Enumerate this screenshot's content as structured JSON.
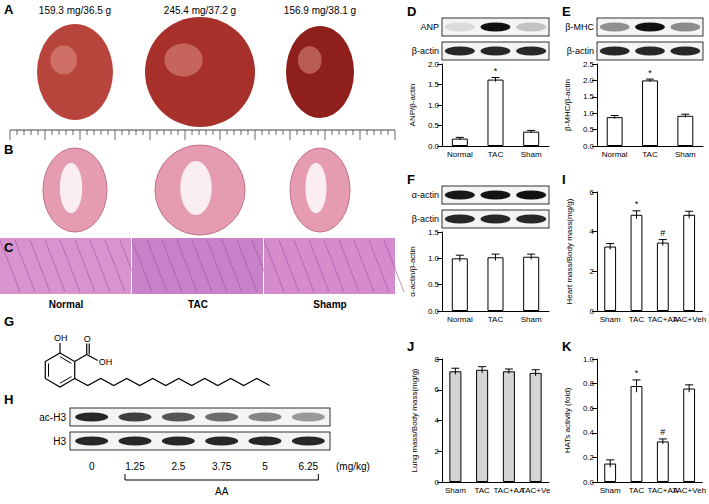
{
  "chart_data": [
    {
      "type": "bar",
      "title": "D",
      "blots": [
        "ANP",
        "β-actin"
      ],
      "y_label": "ANP/β-actin",
      "categories": [
        "Normal",
        "TAC",
        "Sham"
      ],
      "values": [
        0.18,
        1.62,
        0.35
      ],
      "errors": [
        0.03,
        0.05,
        0.03
      ],
      "annotations": [
        null,
        "*",
        null
      ],
      "color": "#ffffff",
      "ylim": [
        0,
        2.0
      ],
      "yticks": [
        {
          "value": 0,
          "label": "0.0"
        },
        {
          "value": 0.5,
          "label": "0.5"
        },
        {
          "value": 1.0,
          "label": "1.0"
        },
        {
          "value": 1.5,
          "label": "1.5"
        },
        {
          "value": 2.0,
          "label": "2.0"
        }
      ],
      "grid": false
    },
    {
      "type": "bar",
      "title": "E",
      "blots": [
        "β-MHC",
        "β-actin"
      ],
      "y_label": "β-MHC/β-actin",
      "categories": [
        "Normal",
        "TAC",
        "Sham"
      ],
      "values": [
        0.88,
        2.0,
        0.92
      ],
      "errors": [
        0.05,
        0.04,
        0.05
      ],
      "annotations": [
        null,
        "*",
        null
      ],
      "color": "#ffffff",
      "ylim": [
        0,
        2.5
      ],
      "yticks": [
        {
          "value": 0,
          "label": "0.0"
        },
        {
          "value": 0.5,
          "label": "0.5"
        },
        {
          "value": 1.0,
          "label": "1.0"
        },
        {
          "value": 1.5,
          "label": "1.5"
        },
        {
          "value": 2.0,
          "label": "2.0"
        },
        {
          "value": 2.5,
          "label": "2.5"
        }
      ],
      "grid": false
    },
    {
      "type": "bar",
      "title": "F",
      "blots": [
        "α-actin",
        "β-actin"
      ],
      "y_label": "α-actin/β-actin",
      "categories": [
        "Normal",
        "TAC",
        "Sham"
      ],
      "values": [
        1.0,
        1.02,
        1.03
      ],
      "errors": [
        0.06,
        0.06,
        0.05
      ],
      "color": "#ffffff",
      "ylim": [
        0,
        1.5
      ],
      "yticks": [
        {
          "value": 0,
          "label": "0.0"
        },
        {
          "value": 0.5,
          "label": "0.5"
        },
        {
          "value": 1.0,
          "label": "1.0"
        },
        {
          "value": 1.5,
          "label": "1.5"
        }
      ],
      "grid": false
    },
    {
      "type": "bar",
      "title": "I",
      "y_label": "Heart mass/Body mass(mg/g)",
      "categories": [
        "Sham",
        "TAC",
        "TAC+AA",
        "TAC+Veh"
      ],
      "values": [
        3.25,
        4.85,
        3.45,
        4.85
      ],
      "errors": [
        0.15,
        0.2,
        0.15,
        0.18
      ],
      "annotations": [
        null,
        "*",
        "#",
        null
      ],
      "color": "#ffffff",
      "ylim": [
        0,
        6
      ],
      "yticks": [
        0,
        2,
        4,
        6
      ],
      "grid": false
    },
    {
      "type": "bar",
      "title": "J",
      "y_label": "Lung mass/Body mass(mg/g)",
      "categories": [
        "Sham",
        "TAC",
        "TAC+AA",
        "TAC+Ve"
      ],
      "values": [
        7.2,
        7.3,
        7.2,
        7.1
      ],
      "errors": [
        0.2,
        0.2,
        0.15,
        0.2
      ],
      "color": "#d4d4d4",
      "ylim": [
        0,
        8
      ],
      "yticks": [
        0,
        2,
        4,
        6,
        8
      ],
      "grid": false
    },
    {
      "type": "bar",
      "title": "K",
      "y_label": "HATs activity (fold)",
      "categories": [
        "Sham",
        "TAC",
        "TAC+AA",
        "TAC+Veh"
      ],
      "values": [
        0.15,
        0.78,
        0.33,
        0.76
      ],
      "errors": [
        0.03,
        0.05,
        0.02,
        0.03
      ],
      "annotations": [
        null,
        "*",
        "#",
        null
      ],
      "color": "#ffffff",
      "ylim": [
        0,
        1.0
      ],
      "yticks": [
        {
          "value": 0,
          "label": "0.0"
        },
        {
          "value": 0.2,
          "label": "0.2"
        },
        {
          "value": 0.4,
          "label": "0.4"
        },
        {
          "value": 0.6,
          "label": "0.6"
        },
        {
          "value": 0.8,
          "label": "0.8"
        },
        {
          "value": 1.0,
          "label": "1.0"
        }
      ],
      "grid": false
    }
  ],
  "figure": {
    "A": {
      "label": "A",
      "weights": [
        "159.3 mg/36.5 g",
        "245.4 mg/37.2 g",
        "156.9 mg/38.1 g"
      ]
    },
    "B": {
      "label": "B"
    },
    "C": {
      "label": "C",
      "groups": [
        "Normal",
        "TAC",
        "Shamp"
      ]
    },
    "G": {
      "label": "G",
      "atoms": [
        "OH",
        "O",
        "OH"
      ]
    },
    "H": {
      "label": "H",
      "rows": [
        "ac-H3",
        "H3"
      ],
      "doses": [
        0,
        1.25,
        2.5,
        3.75,
        5,
        6.25
      ],
      "unit": "(mg/kg)",
      "drug": "AA"
    }
  }
}
